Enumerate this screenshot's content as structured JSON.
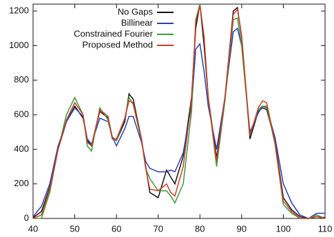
{
  "chart_data": {
    "type": "line",
    "x": [
      40,
      42,
      44,
      46,
      48,
      50,
      52,
      53,
      54,
      56,
      58,
      59,
      60,
      62,
      63,
      64,
      66,
      67,
      68,
      70,
      72,
      73,
      74,
      76,
      78,
      79,
      80,
      81,
      82,
      84,
      86,
      88,
      89,
      90,
      92,
      94,
      95,
      96,
      98,
      100,
      102,
      104,
      106,
      108,
      110
    ],
    "series": [
      {
        "name": "No Gaps",
        "color": "#111111",
        "values": [
          5,
          40,
          180,
          400,
          560,
          650,
          580,
          450,
          420,
          620,
          580,
          470,
          450,
          560,
          720,
          690,
          460,
          300,
          150,
          120,
          280,
          240,
          200,
          360,
          700,
          1100,
          1240,
          1000,
          700,
          350,
          700,
          1200,
          1220,
          1050,
          460,
          620,
          640,
          630,
          450,
          120,
          50,
          10,
          0,
          10,
          5
        ]
      },
      {
        "name": "Billinear",
        "color": "#2b3fb0",
        "values": [
          10,
          70,
          200,
          420,
          560,
          640,
          590,
          460,
          430,
          580,
          560,
          470,
          420,
          520,
          590,
          590,
          440,
          330,
          290,
          270,
          270,
          280,
          270,
          380,
          650,
          980,
          1010,
          850,
          650,
          400,
          700,
          1080,
          1100,
          1000,
          500,
          610,
          650,
          640,
          470,
          200,
          90,
          20,
          0,
          30,
          30
        ]
      },
      {
        "name": "Constrained Fourier",
        "color": "#3a9a3a",
        "values": [
          0,
          0,
          150,
          400,
          600,
          700,
          600,
          420,
          390,
          640,
          570,
          460,
          450,
          580,
          700,
          660,
          450,
          290,
          230,
          160,
          160,
          130,
          90,
          200,
          620,
          1150,
          1240,
          1050,
          700,
          300,
          680,
          1150,
          1160,
          1000,
          480,
          630,
          650,
          650,
          430,
          80,
          30,
          0,
          0,
          20,
          0
        ]
      },
      {
        "name": "Proposed Method",
        "color": "#d03a2a",
        "values": [
          0,
          20,
          170,
          400,
          570,
          670,
          600,
          440,
          420,
          630,
          590,
          460,
          460,
          580,
          680,
          670,
          460,
          290,
          170,
          160,
          200,
          150,
          130,
          300,
          680,
          1140,
          1230,
          1050,
          700,
          330,
          700,
          1180,
          1210,
          1060,
          480,
          640,
          680,
          670,
          440,
          100,
          40,
          0,
          0,
          10,
          0
        ]
      }
    ],
    "xlim": [
      40,
      110
    ],
    "xticks": [
      40,
      50,
      60,
      70,
      80,
      90,
      100,
      110
    ],
    "ylim": [
      0,
      1240
    ],
    "yticks": [
      0,
      200,
      400,
      600,
      800,
      1000,
      1200
    ],
    "legend": "top-right"
  }
}
